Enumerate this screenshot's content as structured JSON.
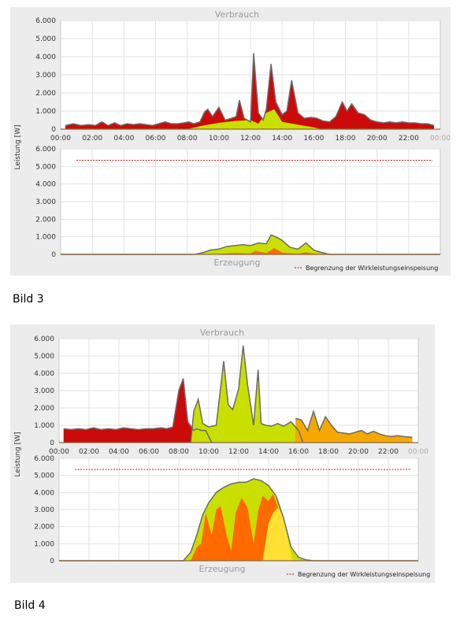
{
  "colors": {
    "red": "#cc0a0a",
    "yellowgreen": "#c8df00",
    "orange": "#ff6a00",
    "amber": "#f5a800",
    "yellow": "#ffe033",
    "outline": "#6b6b6b",
    "limit": "#e01010"
  },
  "figures": [
    {
      "caption": "Bild 3",
      "ylabel": "Leistung [W]",
      "limit_label": "Begrenzung der Wirkleistungseinspeisung",
      "y_ticks": [
        "0",
        "1.000",
        "2.000",
        "3.000",
        "4.000",
        "5.000",
        "6.000"
      ],
      "x_ticks": [
        "00:00",
        "02:00",
        "04:00",
        "06:00",
        "08:00",
        "10:00",
        "12:00",
        "14:00",
        "16:00",
        "18:00",
        "20:00",
        "22:00",
        "00:00"
      ],
      "top_title": "Verbrauch",
      "bottom_title": "Erzeugung"
    },
    {
      "caption": "Bild 4",
      "ylabel": "Leistung [W]",
      "limit_label": "Begrenzung der Wirkleistungseinspeisung",
      "y_ticks": [
        "0",
        "1.000",
        "2.000",
        "3.000",
        "4.000",
        "5.000",
        "6.000"
      ],
      "x_ticks": [
        "00:00",
        "02:00",
        "04:00",
        "06:00",
        "08:00",
        "10:00",
        "12:00",
        "14:00",
        "16:00",
        "18:00",
        "20:00",
        "22:00",
        "00:00"
      ],
      "top_title": "Verbrauch",
      "bottom_title": "Erzeugung"
    }
  ],
  "chart_data": [
    {
      "type": "area",
      "title": "Verbrauch",
      "ylabel": "Leistung [W]",
      "ylim": [
        0,
        6000
      ],
      "xlim": [
        0,
        24
      ],
      "series": [
        {
          "name": "",
          "color_key": "red",
          "x": [
            0.3,
            0.8,
            1.3,
            1.8,
            2.2,
            2.6,
            3.0,
            3.4,
            3.8,
            4.2,
            4.6,
            5.0,
            5.4,
            5.8,
            6.2,
            6.6,
            7.0,
            7.4,
            7.8,
            8.1,
            8.4,
            8.8,
            9.1,
            9.3,
            9.6,
            10.0,
            10.4,
            10.8,
            11.1,
            11.3,
            11.6,
            12.0,
            12.2,
            12.5,
            12.8,
            13.0,
            13.3,
            13.6,
            14.0,
            14.3,
            14.6,
            15.0,
            15.4,
            15.8,
            16.2,
            16.6,
            17.0,
            17.4,
            17.8,
            18.1,
            18.4,
            18.8,
            19.2,
            19.6,
            20.0,
            20.4,
            20.8,
            21.2,
            21.6,
            22.0,
            22.4,
            22.8,
            23.2,
            23.6
          ],
          "values": [
            200,
            300,
            200,
            250,
            200,
            400,
            200,
            350,
            200,
            300,
            250,
            300,
            250,
            200,
            300,
            400,
            300,
            300,
            350,
            400,
            300,
            400,
            950,
            1100,
            700,
            1200,
            500,
            600,
            700,
            1600,
            600,
            400,
            4200,
            900,
            500,
            1100,
            3600,
            1500,
            800,
            1000,
            2700,
            900,
            600,
            650,
            600,
            450,
            400,
            700,
            1500,
            1000,
            1400,
            900,
            800,
            500,
            400,
            350,
            400,
            350,
            400,
            350,
            350,
            300,
            300,
            200
          ]
        },
        {
          "name": "",
          "color_key": "yellowgreen",
          "x": [
            8.0,
            9.0,
            10.0,
            11.0,
            12.0,
            12.5,
            13.0,
            13.5,
            14.0,
            15.0,
            16.0,
            16.5
          ],
          "values": [
            0,
            200,
            350,
            450,
            500,
            300,
            900,
            1100,
            400,
            250,
            100,
            0
          ]
        }
      ]
    },
    {
      "type": "area",
      "title": "Erzeugung",
      "ylabel": "Leistung [W]",
      "ylim": [
        0,
        6000
      ],
      "xlim": [
        0,
        24
      ],
      "limit": 5350,
      "limit_label": "Begrenzung der Wirkleistungseinspeisung",
      "series": [
        {
          "name": "",
          "color_key": "yellowgreen",
          "x": [
            0,
            8.5,
            9.0,
            9.5,
            10.0,
            10.5,
            11.0,
            11.5,
            12.0,
            12.5,
            13.0,
            13.3,
            13.6,
            14.0,
            14.5,
            15.0,
            15.5,
            16.0,
            16.5,
            17.0,
            24
          ],
          "values": [
            0,
            0,
            100,
            250,
            300,
            450,
            500,
            550,
            500,
            650,
            600,
            1100,
            1000,
            800,
            400,
            300,
            650,
            250,
            100,
            0,
            0
          ]
        },
        {
          "name": "",
          "color_key": "orange",
          "x": [
            0,
            9.0,
            10.0,
            11.0,
            12.0,
            12.3,
            13.0,
            13.5,
            14.0,
            15.0,
            15.5,
            16.0,
            17.0,
            24
          ],
          "values": [
            0,
            0,
            30,
            80,
            50,
            200,
            80,
            350,
            100,
            40,
            120,
            40,
            0,
            0
          ]
        }
      ]
    },
    {
      "type": "area",
      "title": "Verbrauch",
      "ylabel": "Leistung [W]",
      "ylim": [
        0,
        6000
      ],
      "xlim": [
        0,
        24
      ],
      "series": [
        {
          "name": "",
          "color_key": "red",
          "x": [
            0.3,
            0.8,
            1.3,
            1.8,
            2.3,
            2.8,
            3.3,
            3.8,
            4.3,
            4.8,
            5.3,
            5.8,
            6.3,
            6.8,
            7.2,
            7.6,
            8.0,
            8.3,
            8.6,
            9.0,
            9.2,
            9.5,
            9.8,
            10.2
          ],
          "values": [
            800,
            750,
            800,
            750,
            850,
            750,
            800,
            750,
            850,
            800,
            750,
            800,
            800,
            850,
            800,
            900,
            3000,
            3700,
            1200,
            700,
            800,
            700,
            700,
            0
          ]
        },
        {
          "name": "",
          "color_key": "yellowgreen",
          "x": [
            8.8,
            9.0,
            9.3,
            9.6,
            10.0,
            10.5,
            11.0,
            11.3,
            11.6,
            12.0,
            12.3,
            12.6,
            13.0,
            13.3,
            13.5,
            13.8,
            14.2,
            14.6,
            15.0,
            15.5,
            16.0,
            16.3
          ],
          "values": [
            0,
            1800,
            2500,
            1100,
            900,
            1000,
            4700,
            2200,
            1900,
            3100,
            5600,
            3300,
            1000,
            4200,
            1100,
            1000,
            950,
            1100,
            950,
            1200,
            700,
            0
          ]
        },
        {
          "name": "",
          "color_key": "amber",
          "x": [
            15.8,
            16.2,
            16.6,
            17.0,
            17.4,
            17.8,
            18.2,
            18.6,
            19.0,
            19.4,
            19.8,
            20.2,
            20.6,
            21.0,
            21.4,
            21.8,
            22.2,
            22.6,
            23.0,
            23.6
          ],
          "values": [
            1400,
            1300,
            700,
            1800,
            700,
            1500,
            1000,
            600,
            550,
            500,
            600,
            700,
            500,
            650,
            500,
            400,
            350,
            400,
            350,
            300
          ]
        }
      ]
    },
    {
      "type": "area",
      "title": "Erzeugung",
      "ylabel": "Leistung [W]",
      "ylim": [
        0,
        6000
      ],
      "xlim": [
        0,
        24
      ],
      "limit": 5350,
      "limit_label": "Begrenzung der Wirkleistungseinspeisung",
      "series": [
        {
          "name": "",
          "color_key": "yellowgreen",
          "x": [
            0,
            8.3,
            8.8,
            9.2,
            9.6,
            10.0,
            10.5,
            11.0,
            11.5,
            12.0,
            12.5,
            13.0,
            13.5,
            14.0,
            14.5,
            15.0,
            15.5,
            16.0,
            16.5,
            17.0,
            24
          ],
          "values": [
            0,
            0,
            500,
            1500,
            2700,
            3400,
            4000,
            4300,
            4500,
            4600,
            4600,
            4800,
            4700,
            4400,
            3800,
            2500,
            800,
            200,
            50,
            0,
            0
          ]
        },
        {
          "name": "",
          "color_key": "orange",
          "x": [
            0,
            8.8,
            9.2,
            9.5,
            9.8,
            10.2,
            10.5,
            10.8,
            11.2,
            11.5,
            11.8,
            12.2,
            12.6,
            13.0,
            13.3,
            13.6,
            14.0,
            14.3,
            14.6,
            15.0,
            15.5,
            24
          ],
          "values": [
            0,
            0,
            800,
            1000,
            2800,
            1500,
            3000,
            3200,
            1500,
            600,
            2800,
            3700,
            3100,
            1000,
            2900,
            3800,
            3500,
            3900,
            3200,
            1700,
            0,
            0
          ]
        },
        {
          "name": "",
          "color_key": "yellow",
          "x": [
            0,
            13.6,
            14.0,
            14.3,
            14.6,
            15.0,
            15.3,
            15.6,
            24
          ],
          "values": [
            0,
            0,
            2200,
            2800,
            3100,
            2600,
            1200,
            0,
            0
          ]
        }
      ]
    }
  ]
}
